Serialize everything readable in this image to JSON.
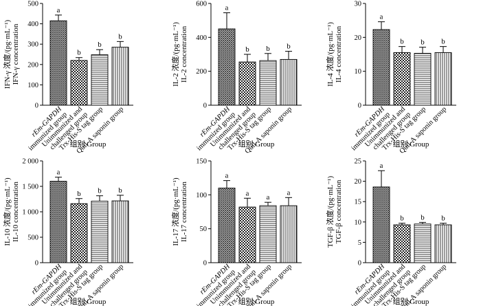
{
  "figure": {
    "x_label": "组别 Group",
    "categories": [
      [
        "rEm-GAPDH",
        "immunized group"
      ],
      [
        "Unimmunized and",
        "challenged group"
      ],
      [
        "Trx-His-S tag group"
      ],
      [
        "Quil-A saponin group"
      ]
    ],
    "bar_patterns": [
      "dense-crosshatch",
      "checker",
      "horizontal-lines",
      "vertical-lines"
    ]
  },
  "chart_data": [
    {
      "type": "bar",
      "ylabel_line1": "IFN-γ 浓度/(pg·mL⁻¹)",
      "ylabel_line2": "IFN-γ concentration",
      "ylim": [
        0,
        500
      ],
      "yticks": [
        0,
        100,
        200,
        300,
        400,
        500
      ],
      "ytick_labels": [
        "0",
        "100",
        "200",
        "300",
        "400",
        "500"
      ],
      "values": [
        415,
        220,
        248,
        285
      ],
      "errors": [
        28,
        14,
        25,
        28
      ],
      "significance": [
        "a",
        "b",
        "b",
        "b"
      ]
    },
    {
      "type": "bar",
      "ylabel_line1": "IL-2 浓度/(pg·mL⁻¹)",
      "ylabel_line2": "IL-2 concentration",
      "ylim": [
        0,
        600
      ],
      "yticks": [
        0,
        200,
        400,
        600
      ],
      "ytick_labels": [
        "0",
        "200",
        "400",
        "600"
      ],
      "values": [
        450,
        255,
        263,
        270
      ],
      "errors": [
        95,
        45,
        42,
        48
      ],
      "significance": [
        "a",
        "b",
        "b",
        "b"
      ]
    },
    {
      "type": "bar",
      "ylabel_line1": "IL-4 浓度/(pg·mL⁻¹)",
      "ylabel_line2": "IL-4 concentration",
      "ylim": [
        0,
        30
      ],
      "yticks": [
        0,
        10,
        20,
        30
      ],
      "ytick_labels": [
        "0",
        "10",
        "20",
        "30"
      ],
      "values": [
        22.3,
        15.5,
        15.3,
        15.5
      ],
      "errors": [
        2.3,
        1.8,
        1.8,
        1.8
      ],
      "significance": [
        "a",
        "b",
        "b",
        "b"
      ]
    },
    {
      "type": "bar",
      "ylabel_line1": "IL-10 浓度/(pg·mL⁻¹)",
      "ylabel_line2": "IL-10 concentration",
      "ylim": [
        0,
        2000
      ],
      "yticks": [
        0,
        500,
        1000,
        1500,
        2000
      ],
      "ytick_labels": [
        "0",
        "500",
        "1 000",
        "1 500",
        "2 000"
      ],
      "values": [
        1600,
        1160,
        1210,
        1215
      ],
      "errors": [
        80,
        100,
        105,
        110
      ],
      "significance": [
        "a",
        "b",
        "b",
        "b"
      ]
    },
    {
      "type": "bar",
      "ylabel_line1": "IL-17 浓度/(pg·mL⁻¹)",
      "ylabel_line2": "IL-17 concentration",
      "ylim": [
        0,
        150
      ],
      "yticks": [
        0,
        50,
        100,
        150
      ],
      "ytick_labels": [
        "0",
        "50",
        "100",
        "150"
      ],
      "values": [
        110,
        82,
        84,
        84
      ],
      "errors": [
        11,
        13,
        5,
        12
      ],
      "significance": [
        "a",
        "a",
        "a",
        "a"
      ]
    },
    {
      "type": "bar",
      "ylabel_line1": "TGF-β 浓度/(pg·mL⁻¹)",
      "ylabel_line2": "TGF-β concentration",
      "ylim": [
        0,
        25
      ],
      "yticks": [
        0,
        5,
        10,
        15,
        20,
        25
      ],
      "ytick_labels": [
        "0",
        "5",
        "10",
        "15",
        "20",
        "25"
      ],
      "values": [
        18.6,
        9.3,
        9.5,
        9.3
      ],
      "errors": [
        4.0,
        0.4,
        0.4,
        0.4
      ],
      "significance": [
        "a",
        "b",
        "b",
        "b"
      ]
    }
  ]
}
